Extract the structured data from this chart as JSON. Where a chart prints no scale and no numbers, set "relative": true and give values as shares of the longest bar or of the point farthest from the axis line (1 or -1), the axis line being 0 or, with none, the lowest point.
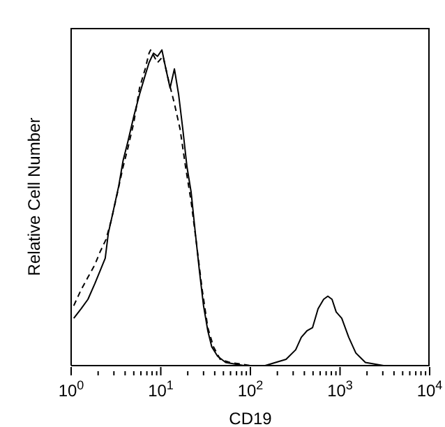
{
  "chart_data": {
    "type": "line",
    "relative": true,
    "xlabel": "CD19",
    "ylabel": "Relative Cell Number",
    "log": "x",
    "grid": false,
    "marker": "none",
    "xlim": [
      1,
      10000
    ],
    "xticks": [
      {
        "value": 1,
        "label": "10$^{0}$"
      },
      {
        "value": 2,
        "label": null
      },
      {
        "value": 3,
        "label": null
      },
      {
        "value": 4,
        "label": null
      },
      {
        "value": 5,
        "label": null
      },
      {
        "value": 6,
        "label": null
      },
      {
        "value": 7,
        "label": null
      },
      {
        "value": 8,
        "label": null
      },
      {
        "value": 9,
        "label": null
      },
      {
        "value": 10,
        "label": "10$^{1}$"
      },
      {
        "value": 20,
        "label": null
      },
      {
        "value": 30,
        "label": null
      },
      {
        "value": 40,
        "label": null
      },
      {
        "value": 50,
        "label": null
      },
      {
        "value": 60,
        "label": null
      },
      {
        "value": 70,
        "label": null
      },
      {
        "value": 80,
        "label": null
      },
      {
        "value": 90,
        "label": null
      },
      {
        "value": 100,
        "label": "10$^{2}$"
      },
      {
        "value": 200,
        "label": null
      },
      {
        "value": 300,
        "label": null
      },
      {
        "value": 400,
        "label": null
      },
      {
        "value": 500,
        "label": null
      },
      {
        "value": 600,
        "label": null
      },
      {
        "value": 700,
        "label": null
      },
      {
        "value": 800,
        "label": null
      },
      {
        "value": 900,
        "label": null
      },
      {
        "value": 1000,
        "label": "10$^{3}$"
      },
      {
        "value": 2000,
        "label": null
      },
      {
        "value": 3000,
        "label": null
      },
      {
        "value": 4000,
        "label": null
      },
      {
        "value": 5000,
        "label": null
      },
      {
        "value": 6000,
        "label": null
      },
      {
        "value": 7000,
        "label": null
      },
      {
        "value": 8000,
        "label": null
      },
      {
        "value": 9000,
        "label": null
      },
      {
        "value": 10000,
        "label": "10$^{4}$"
      }
    ],
    "series": [
      {
        "color": "#000000",
        "line_style": "solid",
        "x": [
          1.07,
          1.29,
          1.54,
          1.84,
          2.1,
          2.4,
          2.6,
          2.9,
          3.4,
          3.8,
          4.3,
          5.0,
          5.8,
          6.7,
          7.4,
          8.3,
          9.2,
          10.3,
          11.4,
          12.7,
          14.2,
          15.8,
          17.6,
          19.6,
          21.8,
          24.3,
          27,
          30,
          33.5,
          37,
          43,
          53,
          85,
          146,
          250,
          320,
          370,
          427,
          493,
          569,
          656,
          731,
          814,
          906,
          1045,
          1250,
          1500,
          1920,
          3060
        ],
        "values": [
          0.15,
          0.18,
          0.21,
          0.26,
          0.3,
          0.34,
          0.42,
          0.48,
          0.57,
          0.65,
          0.71,
          0.79,
          0.86,
          0.92,
          0.96,
          0.99,
          0.98,
          1.0,
          0.94,
          0.88,
          0.94,
          0.86,
          0.75,
          0.63,
          0.55,
          0.42,
          0.3,
          0.19,
          0.11,
          0.06,
          0.03,
          0.01,
          0,
          0,
          0.02,
          0.05,
          0.09,
          0.11,
          0.12,
          0.18,
          0.21,
          0.22,
          0.21,
          0.17,
          0.15,
          0.09,
          0.04,
          0.01,
          0
        ]
      },
      {
        "color": "#000000",
        "line_style": "dashed",
        "x": [
          1.07,
          1.29,
          1.54,
          1.84,
          2.1,
          2.45,
          2.8,
          3.3,
          3.8,
          4.3,
          5.0,
          5.8,
          6.7,
          7.4,
          7.7,
          9.2,
          10.6,
          12.3,
          14.2,
          16.4,
          18.9,
          21.8,
          25.2,
          29,
          33.5,
          38.7,
          46,
          59,
          102,
          5250
        ],
        "values": [
          0.19,
          0.24,
          0.28,
          0.32,
          0.36,
          0.4,
          0.46,
          0.55,
          0.63,
          0.69,
          0.77,
          0.88,
          0.94,
          0.99,
          1.0,
          0.96,
          0.98,
          0.9,
          0.83,
          0.75,
          0.63,
          0.52,
          0.38,
          0.24,
          0.12,
          0.06,
          0.02,
          0.01,
          0,
          0
        ]
      }
    ]
  }
}
